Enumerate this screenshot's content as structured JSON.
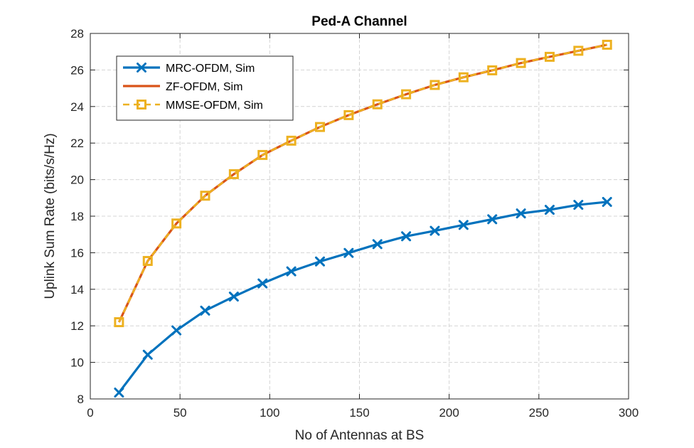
{
  "chart_data": {
    "type": "line",
    "title": "Ped-A Channel",
    "xlabel": "No of Antennas at BS",
    "ylabel": "Uplink Sum Rate (bits/s/Hz)",
    "xlim": [
      0,
      300
    ],
    "ylim": [
      8,
      28
    ],
    "xticks": [
      0,
      50,
      100,
      150,
      200,
      250,
      300
    ],
    "yticks": [
      8,
      10,
      12,
      14,
      16,
      18,
      20,
      22,
      24,
      26,
      28
    ],
    "grid": true,
    "legend_position": "top-left",
    "x": [
      16,
      32,
      48,
      64,
      80,
      96,
      112,
      128,
      144,
      160,
      176,
      192,
      208,
      224,
      240,
      256,
      272,
      288
    ],
    "series": [
      {
        "name": "MRC-OFDM, Sim",
        "color": "#0072BD",
        "marker": "x",
        "values": [
          8.35,
          10.42,
          11.75,
          12.83,
          13.6,
          14.32,
          14.98,
          15.52,
          15.99,
          16.47,
          16.9,
          17.2,
          17.52,
          17.83,
          18.15,
          18.35,
          18.62,
          18.78
        ]
      },
      {
        "name": "ZF-OFDM, Sim",
        "color": "#D95319",
        "marker": "none",
        "values": [
          12.2,
          15.55,
          17.6,
          19.12,
          20.3,
          21.35,
          22.13,
          22.88,
          23.53,
          24.12,
          24.67,
          25.18,
          25.6,
          25.98,
          26.38,
          26.72,
          27.05,
          27.38
        ]
      },
      {
        "name": "MMSE-OFDM, Sim",
        "color": "#EDB120",
        "marker": "square",
        "values": [
          12.2,
          15.55,
          17.6,
          19.12,
          20.3,
          21.35,
          22.13,
          22.88,
          23.53,
          24.12,
          24.67,
          25.18,
          25.6,
          25.98,
          26.38,
          26.72,
          27.05,
          27.38
        ]
      }
    ]
  }
}
